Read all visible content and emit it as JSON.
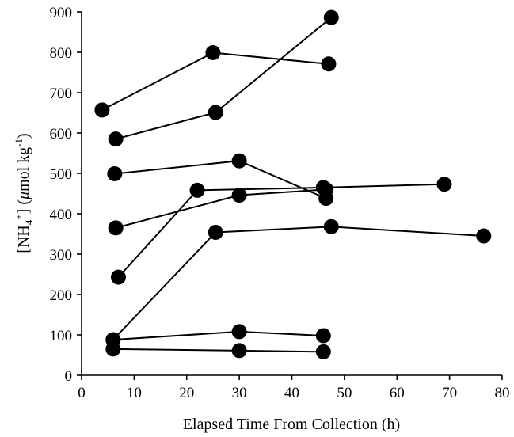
{
  "chart_data": {
    "type": "scatter",
    "title": "",
    "xlabel": "Elapsed Time From Collection (h)",
    "ylabel_parts": {
      "prefix": "[NH",
      "sub": "4",
      "sup": "+",
      "middle": "] (",
      "mu": "μ",
      "unit": "mol kg",
      "exp": "-1",
      "suffix": ")"
    },
    "xlim": [
      0,
      80
    ],
    "ylim": [
      0,
      900
    ],
    "xticks": [
      0,
      10,
      20,
      30,
      40,
      50,
      60,
      70,
      80
    ],
    "yticks": [
      0,
      100,
      200,
      300,
      400,
      500,
      600,
      700,
      800,
      900
    ],
    "grid": false,
    "legend": "none",
    "marker": "filled-circle",
    "color": "#000000",
    "series": [
      {
        "points": [
          [
            3.9,
            657
          ],
          [
            25,
            799
          ],
          [
            47,
            771
          ]
        ]
      },
      {
        "points": [
          [
            6.5,
            585
          ],
          [
            25.5,
            651
          ],
          [
            47.5,
            886
          ]
        ]
      },
      {
        "points": [
          [
            6.3,
            499
          ],
          [
            30,
            531
          ],
          [
            46.5,
            438
          ]
        ]
      },
      {
        "points": [
          [
            6.5,
            365
          ],
          [
            30,
            446
          ],
          [
            46.5,
            460
          ]
        ]
      },
      {
        "points": [
          [
            7,
            243
          ],
          [
            22,
            458
          ],
          [
            46,
            465
          ],
          [
            69,
            473
          ]
        ]
      },
      {
        "points": [
          [
            6,
            88
          ],
          [
            25.5,
            354
          ],
          [
            47.5,
            368
          ],
          [
            76.5,
            345
          ]
        ]
      },
      {
        "points": [
          [
            6,
            88
          ],
          [
            30,
            108
          ],
          [
            46,
            98
          ]
        ]
      },
      {
        "points": [
          [
            6,
            65
          ],
          [
            30,
            61
          ],
          [
            46,
            58
          ]
        ]
      }
    ]
  }
}
